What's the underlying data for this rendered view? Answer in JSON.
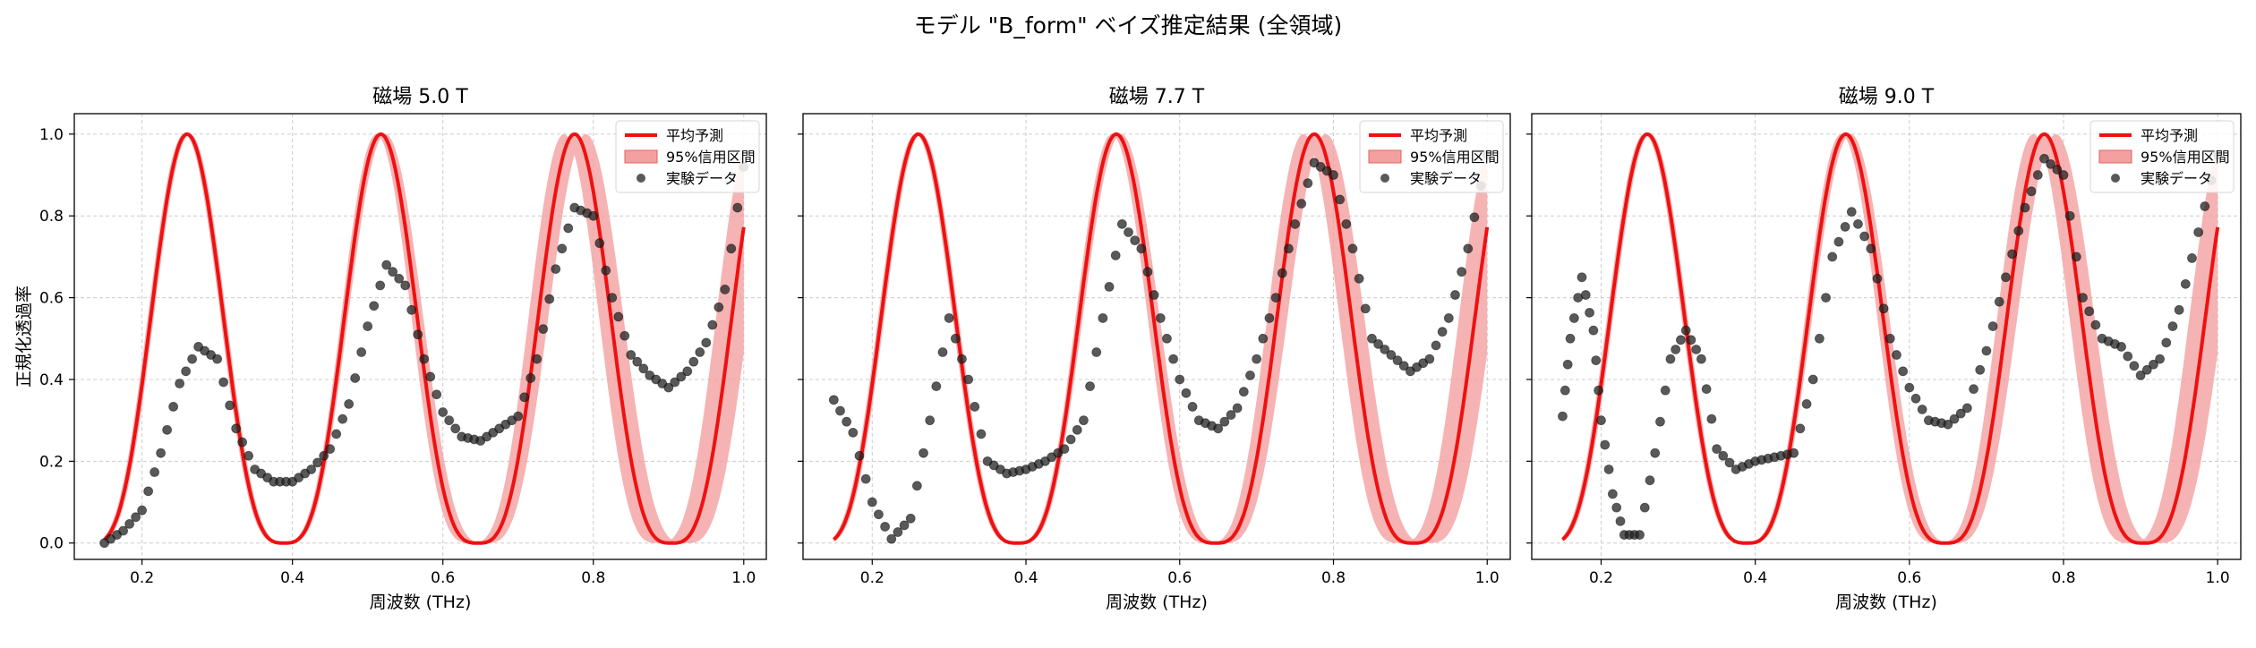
{
  "suptitle": "モデル \"B_form\" ベイズ推定結果 (全領域)",
  "colors": {
    "mean": "#ee1111",
    "band": "#f4a0a0",
    "data": "#222222",
    "grid": "#cccccc"
  },
  "chart_data": [
    {
      "type": "line",
      "title": "磁場 5.0 T",
      "xlabel": "周波数 (THz)",
      "ylabel": "正規化透過率",
      "xlim": [
        0.11,
        1.03
      ],
      "ylim": [
        -0.04,
        1.05
      ],
      "xticks": [
        "0.2",
        "0.4",
        "0.6",
        "0.8",
        "1.0"
      ],
      "yticks": [
        "0.0",
        "0.2",
        "0.4",
        "0.6",
        "0.8",
        "1.0"
      ],
      "grid": true,
      "legend": {
        "placement": "top-right",
        "entries": [
          "平均予測",
          "95%信用区間",
          "実験データ"
        ]
      },
      "model": {
        "peaks": [
          0.26,
          0.515,
          0.775
        ],
        "minima": [
          0.385,
          0.64,
          0.905
        ],
        "range": [
          0.15,
          1.0
        ]
      },
      "data_points": {
        "x": [
          0.15,
          0.175,
          0.2,
          0.225,
          0.25,
          0.275,
          0.3,
          0.325,
          0.35,
          0.375,
          0.4,
          0.425,
          0.45,
          0.475,
          0.5,
          0.525,
          0.55,
          0.575,
          0.6,
          0.625,
          0.65,
          0.675,
          0.7,
          0.725,
          0.75,
          0.775,
          0.8,
          0.825,
          0.85,
          0.875,
          0.9,
          0.925,
          0.95,
          0.975,
          1.0
        ],
        "y": [
          0.0,
          0.03,
          0.08,
          0.22,
          0.39,
          0.48,
          0.45,
          0.28,
          0.18,
          0.15,
          0.15,
          0.18,
          0.23,
          0.34,
          0.53,
          0.68,
          0.63,
          0.45,
          0.32,
          0.26,
          0.25,
          0.28,
          0.31,
          0.45,
          0.67,
          0.82,
          0.8,
          0.6,
          0.46,
          0.41,
          0.38,
          0.42,
          0.49,
          0.62,
          0.92
        ]
      }
    },
    {
      "type": "line",
      "title": "磁場 7.7 T",
      "xlabel": "周波数 (THz)",
      "ylabel": "",
      "xlim": [
        0.11,
        1.03
      ],
      "ylim": [
        -0.04,
        1.05
      ],
      "xticks": [
        "0.2",
        "0.4",
        "0.6",
        "0.8",
        "1.0"
      ],
      "yticks": [],
      "grid": true,
      "legend": {
        "placement": "top-right",
        "entries": [
          "平均予測",
          "95%信用区間",
          "実験データ"
        ]
      },
      "model": {
        "peaks": [
          0.26,
          0.515,
          0.775
        ],
        "minima": [
          0.385,
          0.64,
          0.905
        ],
        "range": [
          0.15,
          1.0
        ]
      },
      "data_points": {
        "x": [
          0.15,
          0.175,
          0.2,
          0.225,
          0.25,
          0.275,
          0.3,
          0.325,
          0.35,
          0.375,
          0.4,
          0.425,
          0.45,
          0.475,
          0.5,
          0.525,
          0.55,
          0.575,
          0.6,
          0.625,
          0.65,
          0.675,
          0.7,
          0.725,
          0.75,
          0.775,
          0.8,
          0.825,
          0.85,
          0.875,
          0.9,
          0.925,
          0.95,
          0.975,
          1.0
        ],
        "y": [
          0.35,
          0.27,
          0.1,
          0.01,
          0.06,
          0.3,
          0.55,
          0.4,
          0.2,
          0.17,
          0.18,
          0.2,
          0.23,
          0.3,
          0.55,
          0.78,
          0.72,
          0.55,
          0.4,
          0.3,
          0.28,
          0.33,
          0.45,
          0.6,
          0.78,
          0.93,
          0.9,
          0.72,
          0.5,
          0.46,
          0.42,
          0.45,
          0.55,
          0.72,
          0.95
        ]
      }
    },
    {
      "type": "line",
      "title": "磁場 9.0 T",
      "xlabel": "周波数 (THz)",
      "ylabel": "",
      "xlim": [
        0.11,
        1.03
      ],
      "ylim": [
        -0.04,
        1.05
      ],
      "xticks": [
        "0.2",
        "0.4",
        "0.6",
        "0.8",
        "1.0"
      ],
      "yticks": [],
      "grid": true,
      "legend": {
        "placement": "top-right",
        "entries": [
          "平均予測",
          "95%信用区間",
          "実験データ"
        ]
      },
      "model": {
        "peaks": [
          0.26,
          0.515,
          0.775
        ],
        "minima": [
          0.385,
          0.64,
          0.905
        ],
        "range": [
          0.15,
          1.0
        ]
      },
      "data_points": {
        "x": [
          0.15,
          0.16,
          0.175,
          0.19,
          0.2,
          0.215,
          0.23,
          0.25,
          0.27,
          0.29,
          0.31,
          0.33,
          0.35,
          0.375,
          0.4,
          0.425,
          0.45,
          0.475,
          0.5,
          0.525,
          0.55,
          0.575,
          0.6,
          0.625,
          0.65,
          0.675,
          0.7,
          0.725,
          0.75,
          0.775,
          0.8,
          0.825,
          0.85,
          0.875,
          0.9,
          0.925,
          0.95,
          0.975,
          1.0
        ],
        "y": [
          0.31,
          0.5,
          0.65,
          0.52,
          0.3,
          0.12,
          0.02,
          0.02,
          0.22,
          0.45,
          0.52,
          0.45,
          0.23,
          0.18,
          0.2,
          0.21,
          0.22,
          0.4,
          0.7,
          0.81,
          0.72,
          0.5,
          0.38,
          0.3,
          0.29,
          0.33,
          0.47,
          0.65,
          0.82,
          0.94,
          0.9,
          0.6,
          0.5,
          0.48,
          0.41,
          0.45,
          0.57,
          0.76,
          0.95
        ]
      }
    }
  ]
}
